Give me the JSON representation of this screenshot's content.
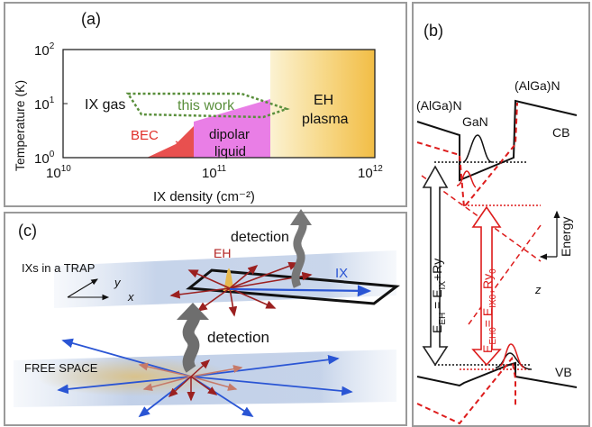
{
  "panel_a": {
    "label": "(a)",
    "ylabel": "Temperature (K)",
    "xlabel": "IX density (cm⁻²)",
    "xticks": [
      {
        "base": "10",
        "exp": "10"
      },
      {
        "base": "10",
        "exp": "11"
      },
      {
        "base": "10",
        "exp": "12"
      }
    ],
    "yticks": [
      {
        "base": "10",
        "exp": "0"
      },
      {
        "base": "10",
        "exp": "1"
      },
      {
        "base": "10",
        "exp": "2"
      }
    ],
    "region_labels": {
      "ix_gas": "IX gas",
      "this_work": "this work",
      "bec": "BEC",
      "dipolar_1": "dipolar",
      "dipolar_2": "liquid",
      "eh_1": "EH",
      "eh_2": "plasma"
    },
    "colors": {
      "bec": "#e8504f",
      "dipolar": "#e97ee6",
      "eh_plasma": "#f5cc6a",
      "this_work": "#5a8f3c"
    }
  },
  "panel_b": {
    "label": "(b)",
    "algan_left": "(AlGa)N",
    "gan": "GaN",
    "algan_right": "(AlGa)N",
    "cb": "CB",
    "vb": "VB",
    "energy": "Energy",
    "z": "z",
    "eh_eq": {
      "E": "E",
      "sub1": "EH",
      "eq": " = E",
      "sub2": "IX",
      "rest": "+Ry"
    },
    "eh0_eq": {
      "E": "E",
      "sub1": "EH0",
      "eq": "= E",
      "sub2": "IX0+",
      "rest": "Ry",
      "sub3": "0"
    }
  },
  "panel_c": {
    "label": "(c)",
    "trap": "IXs in a TRAP",
    "y": "y",
    "x": "x",
    "eh": "EH",
    "ix": "IX",
    "detection_top": "detection",
    "detection_mid": "detection",
    "free_space": "FREE SPACE"
  }
}
